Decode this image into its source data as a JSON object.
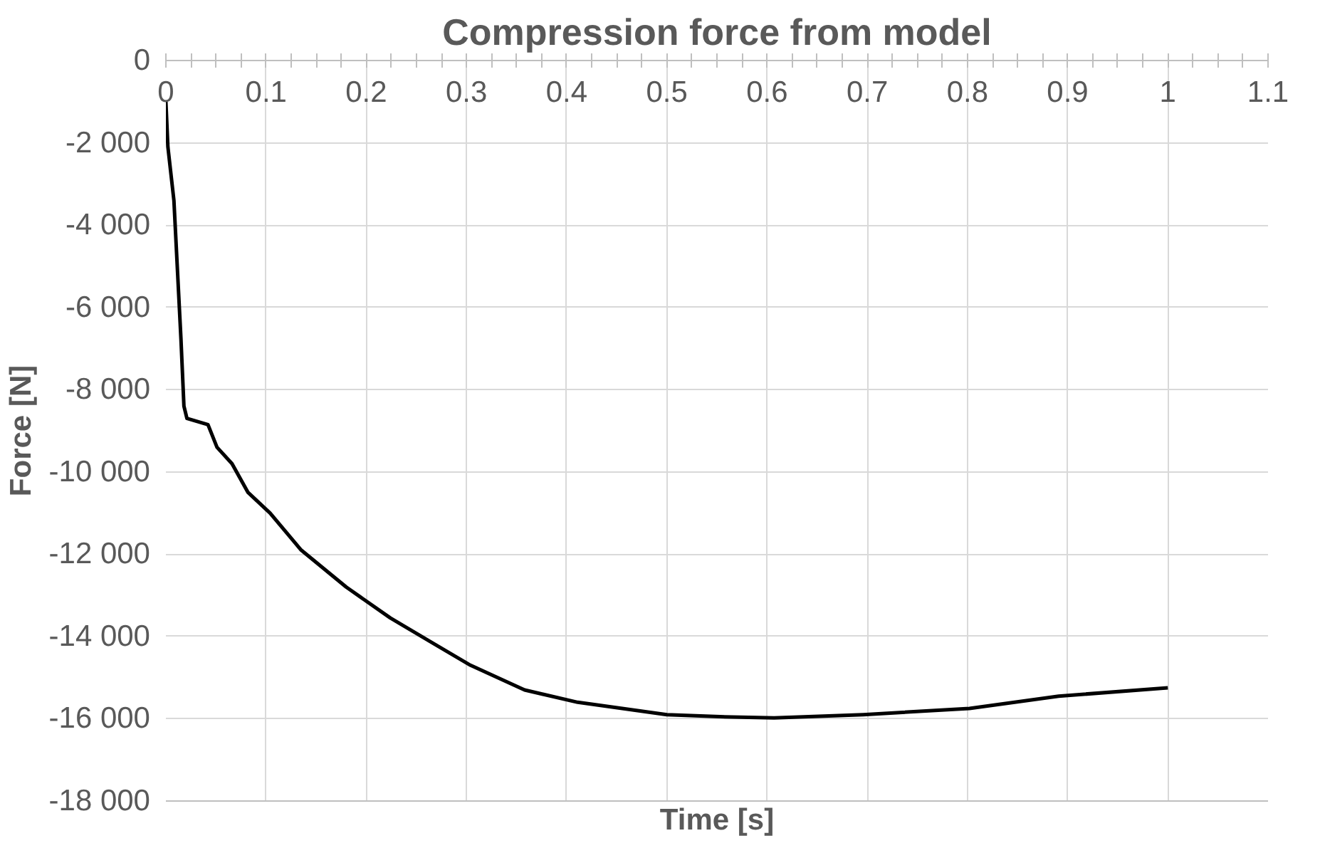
{
  "chart_data": {
    "type": "line",
    "title": "Compression force from model",
    "xlabel": "Time [s]",
    "ylabel": "Force [N]",
    "xlim": [
      0,
      1.1
    ],
    "xticks": [
      0,
      0.1,
      0.2,
      0.3,
      0.4,
      0.5,
      0.6,
      0.7,
      0.8,
      0.9,
      1,
      1.1
    ],
    "ylim": [
      -18000,
      0
    ],
    "yticks": [
      0,
      {
        "value": -2000,
        "label": "-2 000"
      },
      {
        "value": -4000,
        "label": "-4 000"
      },
      {
        "value": -6000,
        "label": "-6 000"
      },
      {
        "value": -8000,
        "label": "-8 000"
      },
      {
        "value": -10000,
        "label": "-10 000"
      },
      {
        "value": -12000,
        "label": "-12 000"
      },
      {
        "value": -14000,
        "label": "-14 000"
      },
      {
        "value": -16000,
        "label": "-16 000"
      },
      {
        "value": -18000,
        "label": "-18 000"
      }
    ],
    "grid": true,
    "line_style": "solid",
    "series": [
      {
        "color": "#000000",
        "x": [
          0,
          0.002,
          0.008,
          0.015,
          0.018,
          0.021,
          0.042,
          0.051,
          0.066,
          0.082,
          0.104,
          0.135,
          0.18,
          0.224,
          0.269,
          0.304,
          0.358,
          0.411,
          0.5,
          0.553,
          0.607,
          0.696,
          0.802,
          0.891,
          1.0
        ],
        "values": [
          -1000,
          -2100,
          -3400,
          -6750,
          -8400,
          -8700,
          -8850,
          -9400,
          -9800,
          -10500,
          -11000,
          -11900,
          -12800,
          -13550,
          -14200,
          -14700,
          -15300,
          -15600,
          -15900,
          -15950,
          -15980,
          -15900,
          -15750,
          -15450,
          -15250
        ]
      }
    ]
  }
}
